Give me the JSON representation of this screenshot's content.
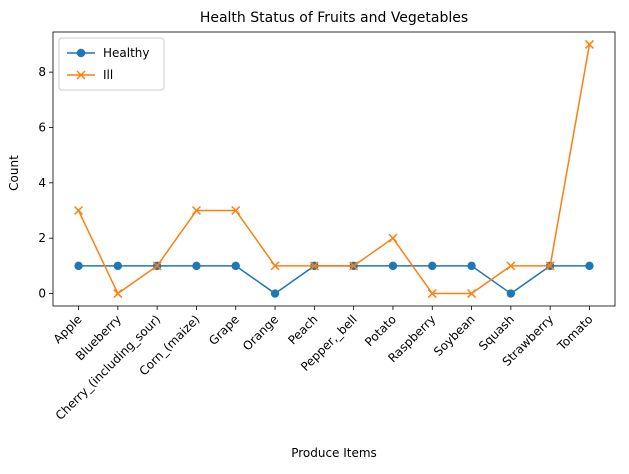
{
  "chart_data": {
    "type": "line",
    "title": "Health Status of Fruits and Vegetables",
    "xlabel": "Produce Items",
    "ylabel": "Count",
    "categories": [
      "Apple",
      "Blueberry",
      "Cherry_(including_sour)",
      "Corn_(maize)",
      "Grape",
      "Orange",
      "Peach",
      "Pepper,_bell",
      "Potato",
      "Raspberry",
      "Soybean",
      "Squash",
      "Strawberry",
      "Tomato"
    ],
    "series": [
      {
        "name": "Healthy",
        "color": "#1f77b4",
        "marker": "circle",
        "values": [
          1,
          1,
          1,
          1,
          1,
          0,
          1,
          1,
          1,
          1,
          1,
          0,
          1,
          1
        ]
      },
      {
        "name": "Ill",
        "color": "#ff7f0e",
        "marker": "x",
        "values": [
          3,
          0,
          1,
          3,
          3,
          1,
          1,
          1,
          2,
          0,
          0,
          1,
          1,
          9
        ]
      }
    ],
    "ylim": [
      -0.45,
      9.45
    ],
    "yticks": [
      0,
      2,
      4,
      6,
      8
    ],
    "legend_position": "top-left",
    "grid": false
  }
}
